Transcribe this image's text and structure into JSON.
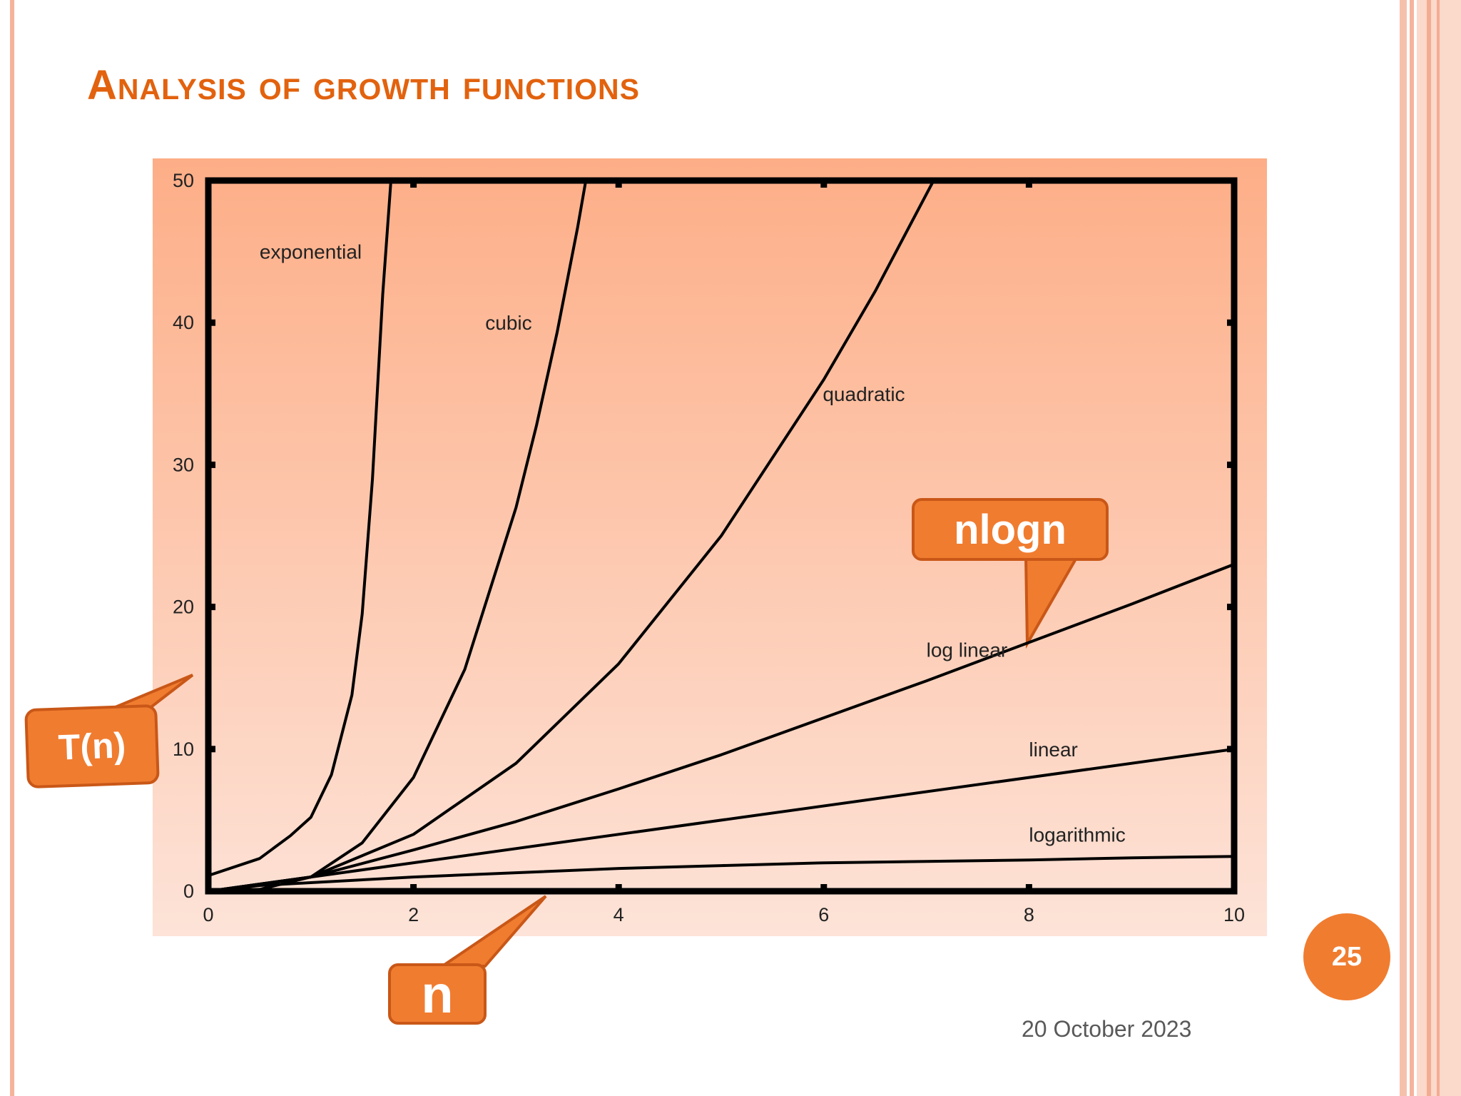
{
  "slide": {
    "title": "Analysis of growth functions",
    "page_number": "25",
    "date": "20 October 2023"
  },
  "callouts": {
    "nlogn": "nlogn",
    "tn": "T(n)",
    "n": "n"
  },
  "colors": {
    "title": "#e2620e",
    "callout_fill": "#f07c30",
    "callout_border": "#c95717",
    "plot_bg_top": "#fdae87",
    "plot_bg_bottom": "#fde3d8",
    "curve": "#000000"
  },
  "chart_data": {
    "type": "line",
    "title": "",
    "xlabel": "",
    "ylabel": "",
    "xlim": [
      0,
      10
    ],
    "ylim": [
      0,
      50
    ],
    "x_ticks": [
      "0",
      "2",
      "4",
      "6",
      "8",
      "10"
    ],
    "y_ticks": [
      "0",
      "10",
      "20",
      "30",
      "40",
      "50"
    ],
    "grid": false,
    "series": [
      {
        "name": "exponential",
        "label_at": [
          0.5,
          44.5
        ],
        "points": [
          [
            0,
            1.1
          ],
          [
            0.5,
            2.3
          ],
          [
            0.8,
            3.9
          ],
          [
            1.0,
            5.2
          ],
          [
            1.2,
            8.2
          ],
          [
            1.4,
            13.8
          ],
          [
            1.5,
            19.5
          ],
          [
            1.6,
            29
          ],
          [
            1.7,
            42
          ],
          [
            1.78,
            50
          ]
        ]
      },
      {
        "name": "cubic",
        "label_at": [
          2.7,
          39.5
        ],
        "points": [
          [
            0,
            0
          ],
          [
            0.5,
            0.13
          ],
          [
            1,
            1
          ],
          [
            1.5,
            3.4
          ],
          [
            2,
            8
          ],
          [
            2.5,
            15.6
          ],
          [
            3,
            27
          ],
          [
            3.2,
            32.8
          ],
          [
            3.4,
            39.3
          ],
          [
            3.6,
            46.7
          ],
          [
            3.68,
            50
          ]
        ]
      },
      {
        "name": "quadratic",
        "label_at": [
          5.99,
          34.5
        ],
        "points": [
          [
            0,
            0
          ],
          [
            1,
            1
          ],
          [
            2,
            4
          ],
          [
            3,
            9
          ],
          [
            4,
            16
          ],
          [
            5,
            25
          ],
          [
            6,
            36
          ],
          [
            6.5,
            42.2
          ],
          [
            7.07,
            50
          ]
        ]
      },
      {
        "name": "log linear",
        "label_at": [
          7.0,
          16.5
        ],
        "points": [
          [
            0,
            0
          ],
          [
            0.5,
            0.5
          ],
          [
            1,
            1
          ],
          [
            2,
            2.9
          ],
          [
            3,
            4.9
          ],
          [
            4,
            7.2
          ],
          [
            5,
            9.6
          ],
          [
            6,
            12.2
          ],
          [
            7,
            14.8
          ],
          [
            8,
            17.5
          ],
          [
            9,
            20.2
          ],
          [
            10,
            23.0
          ]
        ]
      },
      {
        "name": "linear",
        "label_at": [
          8.0,
          9.5
        ],
        "points": [
          [
            0,
            0
          ],
          [
            10,
            10
          ]
        ]
      },
      {
        "name": "logarithmic",
        "label_at": [
          8.0,
          3.5
        ],
        "points": [
          [
            0,
            0
          ],
          [
            0.5,
            0.4
          ],
          [
            1,
            0.6
          ],
          [
            2,
            1.0
          ],
          [
            3,
            1.3
          ],
          [
            4,
            1.6
          ],
          [
            5,
            1.8
          ],
          [
            6,
            2.0
          ],
          [
            7,
            2.1
          ],
          [
            8,
            2.2
          ],
          [
            9,
            2.35
          ],
          [
            10,
            2.45
          ]
        ]
      }
    ]
  }
}
